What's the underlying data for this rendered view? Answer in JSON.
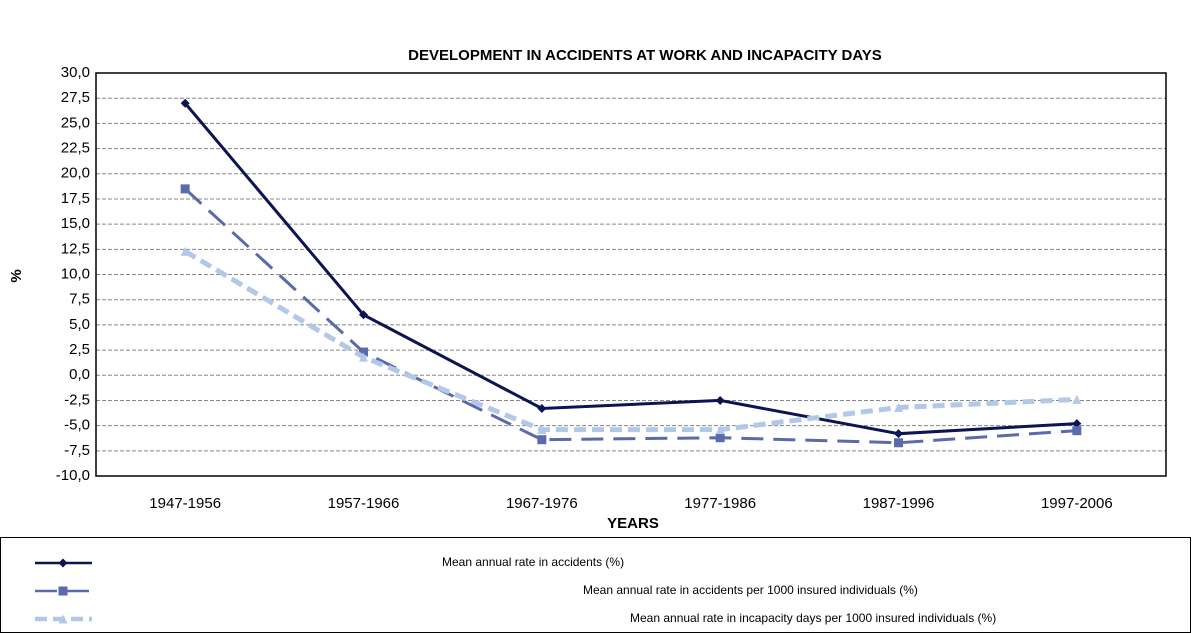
{
  "chart_data": {
    "type": "line",
    "title": "DEVELOPMENT IN ACCIDENTS AT WORK AND INCAPACITY DAYS",
    "x_label": "YEARS",
    "y_label": "%",
    "categories": [
      "1947-1956",
      "1957-1966",
      "1967-1976",
      "1977-1986",
      "1987-1996",
      "1997-2006"
    ],
    "series": [
      {
        "name": "Mean annual rate in accidents (%)",
        "color": "#0d1452",
        "line_style": "solid",
        "marker": "diamond",
        "values": [
          27.0,
          6.0,
          -3.3,
          -2.5,
          -5.8,
          -4.8
        ]
      },
      {
        "name": "Mean annual rate in accidents per 1000 insured individuals (%)",
        "color": "#5a6aab",
        "line_style": "dashed",
        "marker": "square",
        "values": [
          18.5,
          2.3,
          -6.4,
          -6.2,
          -6.7,
          -5.5
        ]
      },
      {
        "name": "Mean annual rate in incapacity days per 1000 insured individuals (%)",
        "color": "#b3c8e8",
        "line_style": "dotted",
        "marker": "triangle",
        "values": [
          12.3,
          1.8,
          -5.4,
          -5.4,
          -3.2,
          -2.4
        ]
      }
    ],
    "ylim": [
      -10,
      30
    ],
    "yticks": [
      {
        "value": -10,
        "label": "-10,0"
      },
      {
        "value": -7.5,
        "label": "-7,5"
      },
      {
        "value": -5,
        "label": "-5,0"
      },
      {
        "value": -2.5,
        "label": "-2,5"
      },
      {
        "value": 0,
        "label": "0,0"
      },
      {
        "value": 2.5,
        "label": "2,5"
      },
      {
        "value": 5,
        "label": "5,0"
      },
      {
        "value": 7.5,
        "label": "7,5"
      },
      {
        "value": 10,
        "label": "10,0"
      },
      {
        "value": 12.5,
        "label": "12,5"
      },
      {
        "value": 15,
        "label": "15,0"
      },
      {
        "value": 17.5,
        "label": "17,5"
      },
      {
        "value": 20,
        "label": "20,0"
      },
      {
        "value": 22.5,
        "label": "22,5"
      },
      {
        "value": 25,
        "label": "25,0"
      },
      {
        "value": 27.5,
        "label": "27,5"
      },
      {
        "value": 30,
        "label": "30,0"
      }
    ],
    "grid": true,
    "legend_position": "bottom"
  }
}
